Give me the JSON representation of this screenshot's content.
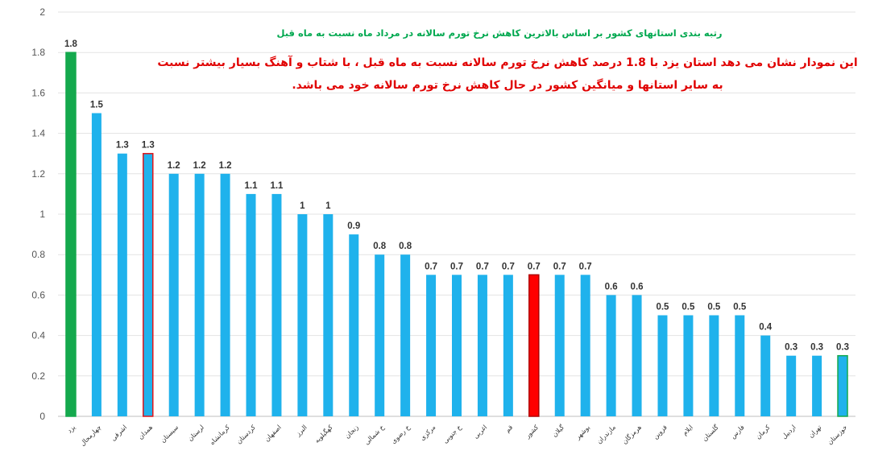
{
  "chart_data": {
    "type": "bar",
    "title": "رتبه بندی استانهای کشور بر اساس بالاترین کاهش نرخ تورم سالانه  در مرداد ماه نسبت به ماه قبل",
    "annotation": "این نمودار نشان می دهد استان یزد با 1.8 درصد کاهش نرخ تورم سالانه نسبت به ماه قبل ، با شتاب و آهنگ بسیار بیشتر نسبت به سایر استانها و میانگین کشور در حال کاهش نرخ تورم سالانه خود می باشد.",
    "categories": [
      "یزد",
      "چهارمحال",
      "اشرقی",
      "همدان",
      "سیستان",
      "لرستان",
      "کرمانشاه",
      "کردستان",
      "اصفهان",
      "البرز",
      "کهگیلویه",
      "زنجان",
      "خ شمالی",
      "خ رضوی",
      "مرکزی",
      "خ جنوبی",
      "اغربی",
      "قم",
      "کشور",
      "گیلان",
      "بوشهر",
      "مازندران",
      "هرمزگان",
      "قزوین",
      "ایلام",
      "گلستان",
      "فارس",
      "کرمان",
      "اردبیل",
      "تهران",
      "خوزستان"
    ],
    "values": [
      1.8,
      1.5,
      1.3,
      1.3,
      1.2,
      1.2,
      1.2,
      1.1,
      1.1,
      1,
      1,
      0.9,
      0.8,
      0.8,
      0.7,
      0.7,
      0.7,
      0.7,
      0.7,
      0.7,
      0.7,
      0.6,
      0.6,
      0.5,
      0.5,
      0.5,
      0.5,
      0.4,
      0.3,
      0.3,
      0.3
    ],
    "data_labels": [
      "1.8",
      "1.5",
      "1.3",
      "1.3",
      "1.2",
      "1.2",
      "1.2",
      "1.1",
      "1.1",
      "1",
      "1",
      "0.9",
      "0.8",
      "0.8",
      "0.7",
      "0.7",
      "0.7",
      "0.7",
      "0.7",
      "0.7",
      "0.7",
      "0.6",
      "0.6",
      "0.5",
      "0.5",
      "0.5",
      "0.5",
      "0.4",
      "0.3",
      "0.3",
      "0.3"
    ],
    "highlights": {
      "0": {
        "fill": "#14a94d",
        "stroke": "#14a94d"
      },
      "3": {
        "fill": "#1fb2ec",
        "stroke": "#e0151a"
      },
      "18": {
        "fill": "#ff0000",
        "stroke": "#b00000"
      },
      "30": {
        "fill": "#1fb2ec",
        "stroke": "#14a94d"
      }
    },
    "colors": {
      "default_bar": "#1fb2ec",
      "grid": "#e3e3e3",
      "annotation": "#e00000",
      "title": "#00a84f"
    },
    "ylim": [
      0,
      2
    ],
    "yticks": [
      0,
      0.2,
      0.4,
      0.6,
      0.8,
      1,
      1.2,
      1.4,
      1.6,
      1.8,
      2
    ],
    "ytick_labels": [
      "0",
      "0.2",
      "0.4",
      "0.6",
      "0.8",
      "1",
      "1.2",
      "1.4",
      "1.6",
      "1.8",
      "2"
    ],
    "grid": true,
    "legend": "none"
  }
}
